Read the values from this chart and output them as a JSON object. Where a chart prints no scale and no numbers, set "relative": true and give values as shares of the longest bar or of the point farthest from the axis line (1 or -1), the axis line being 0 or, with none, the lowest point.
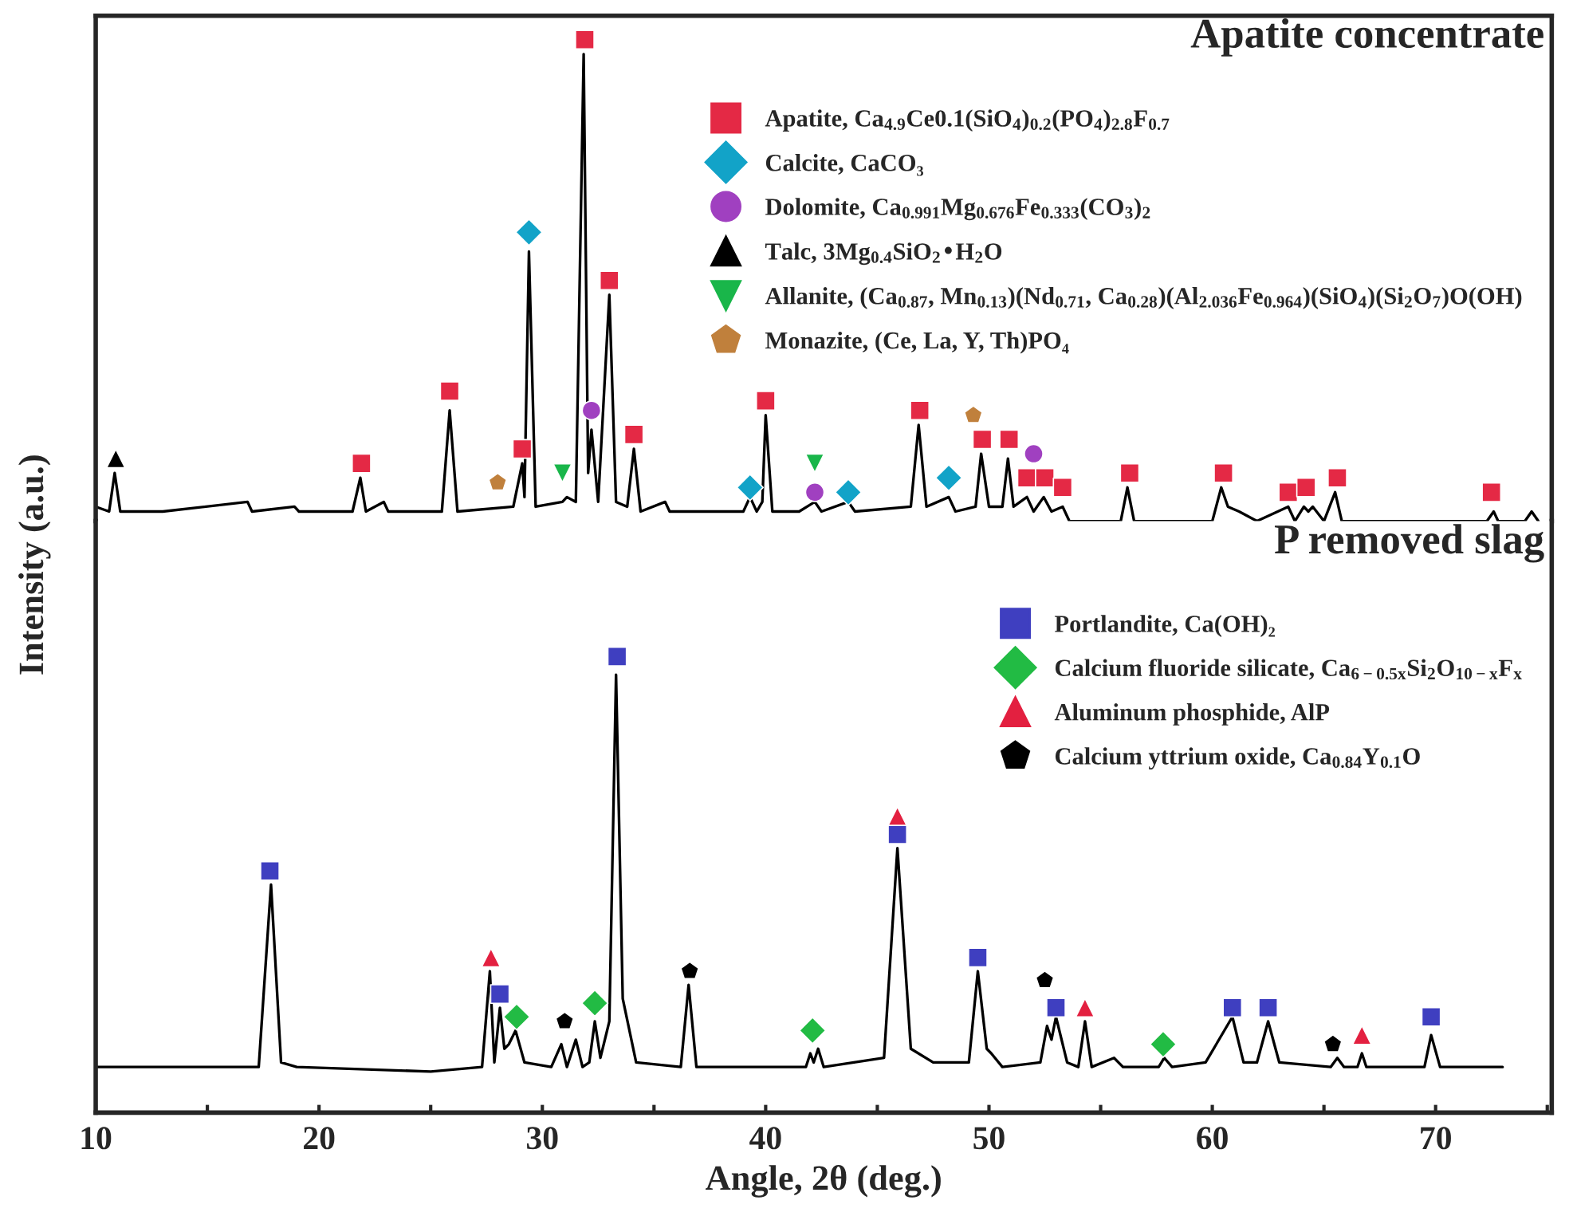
{
  "chart_data": [
    {
      "type": "line",
      "title": "Apatite concentrate",
      "ylabel": "Intensity (a.u.)",
      "relative": true,
      "xlim": [
        10,
        75.2
      ],
      "tick_labels": false,
      "legend": "top right",
      "series": [
        {
          "type": "line",
          "color": "#000000",
          "x": [
            10,
            10.6,
            10.85,
            11.1,
            13,
            16.8,
            17,
            18.9,
            19.1,
            21.5,
            21.85,
            22.1,
            22.9,
            23.1,
            25.5,
            25.85,
            26.2,
            28.7,
            29.1,
            29.2,
            29.4,
            29.7,
            30.9,
            31.1,
            31.5,
            31.85,
            32.05,
            32.2,
            32.5,
            33.0,
            33.3,
            33.8,
            34.1,
            34.4,
            35.5,
            35.7,
            39.0,
            39.3,
            39.6,
            39.85,
            40.0,
            40.3,
            41.5,
            42.2,
            42.5,
            43.7,
            44,
            46.5,
            46.85,
            47.2,
            48.2,
            48.5,
            49.4,
            49.65,
            50.0,
            50.6,
            50.85,
            51.1,
            51.7,
            52.0,
            52.45,
            52.8,
            53.3,
            53.6,
            55.9,
            56.2,
            56.5,
            60.0,
            60.4,
            60.7,
            61.2,
            62.0,
            63.4,
            63.7,
            64.1,
            64.3,
            64.5,
            65.0,
            65.5,
            65.8,
            72.3,
            72.6,
            72.8,
            74.0,
            74.3,
            74.6
          ],
          "values": [
            0.03,
            0.02,
            0.1,
            0.02,
            0.02,
            0.04,
            0.02,
            0.03,
            0.02,
            0.02,
            0.09,
            0.02,
            0.04,
            0.02,
            0.02,
            0.23,
            0.02,
            0.03,
            0.12,
            0.05,
            0.56,
            0.03,
            0.04,
            0.05,
            0.04,
            0.97,
            0.1,
            0.19,
            0.04,
            0.47,
            0.04,
            0.03,
            0.15,
            0.02,
            0.04,
            0.02,
            0.02,
            0.05,
            0.02,
            0.04,
            0.22,
            0.02,
            0.02,
            0.04,
            0.02,
            0.04,
            0.02,
            0.03,
            0.2,
            0.03,
            0.05,
            0.02,
            0.03,
            0.14,
            0.03,
            0.03,
            0.13,
            0.03,
            0.05,
            0.02,
            0.05,
            0.02,
            0.03,
            0.0,
            0.0,
            0.07,
            0.0,
            0.0,
            0.07,
            0.03,
            0.02,
            0.0,
            0.03,
            0.0,
            0.03,
            0.02,
            0.03,
            0.0,
            0.06,
            0.0,
            0.0,
            0.02,
            0.0,
            0.0,
            0.02,
            0.0
          ]
        },
        {
          "type": "scatter",
          "name": "Apatite, Ca$_{4.9}$Ce0.1(SiO$_{4}$)$_{0.2}$(PO$_{4}$)$_{2.8}$F$_{0.7}$",
          "color": "#e42945",
          "marker": "square",
          "x": [
            21.9,
            25.85,
            29.1,
            31.9,
            33.0,
            34.1,
            40.0,
            46.9,
            49.7,
            50.9,
            51.7,
            52.5,
            53.3,
            56.3,
            60.5,
            63.4,
            64.2,
            65.6,
            72.5
          ],
          "values": [
            0.12,
            0.27,
            0.15,
            1.0,
            0.5,
            0.18,
            0.25,
            0.23,
            0.17,
            0.17,
            0.09,
            0.09,
            0.07,
            0.1,
            0.1,
            0.06,
            0.07,
            0.09,
            0.06
          ]
        },
        {
          "type": "scatter",
          "name": "Calcite, CaCO₃",
          "color": "#12a3c8",
          "marker": "diamond",
          "x": [
            29.4,
            39.3,
            43.7,
            48.2
          ],
          "values": [
            0.6,
            0.07,
            0.06,
            0.09
          ]
        },
        {
          "type": "scatter",
          "name": "Dolomite, Ca$_{0.991}$Mg$_{0.676}$Fe$_{0.333}$(CO$_{3}$)$_{2}$",
          "color": "#a040c0",
          "marker": "circle",
          "x": [
            32.2,
            42.2,
            52.0
          ],
          "values": [
            0.23,
            0.06,
            0.14
          ]
        },
        {
          "type": "scatter",
          "name": "Talc, 3Mg$_{0.4}$SiO$_{2}$•H$_{2}$O",
          "color": "#000000",
          "marker": "triangle",
          "x": [
            10.9
          ],
          "values": [
            0.13
          ]
        },
        {
          "type": "scatter",
          "name": "Allanite, (Ca$_{0.87}$, Mn$_{0.13}$)(Nd$_{0.71}$, Ca$_{0.28}$)(Al$_{2.036}$Fe$_{0.964}$)(SiO$_{4}$)(Si$_{2}$O$_{7}$)O(OH)",
          "color": "#19b64a",
          "marker": "triangle_down",
          "x": [
            30.9,
            42.2
          ],
          "values": [
            0.1,
            0.12
          ]
        },
        {
          "type": "scatter",
          "name": "Monazite, (Ce, La, Y, Th)PO₄",
          "color": "#c0803c",
          "x": [
            28.0,
            49.3
          ],
          "values": [
            0.08,
            0.22
          ]
        }
      ]
    },
    {
      "type": "line",
      "title": "P removed slag",
      "xlabel": "Angle, 2θ (deg.)",
      "relative": true,
      "xlim": [
        10,
        75.2
      ],
      "tick_labels": "x",
      "legend": "top right",
      "xticks": [
        10,
        {
          "value": 15,
          "label": null
        },
        20,
        {
          "value": 25,
          "label": null
        },
        30,
        {
          "value": 35,
          "label": null
        },
        40,
        {
          "value": 45,
          "label": null
        },
        50,
        {
          "value": 55,
          "label": null
        },
        60,
        {
          "value": 65,
          "label": null
        },
        70,
        {
          "value": 75,
          "label": null
        }
      ],
      "series": [
        {
          "type": "line",
          "color": "#000000",
          "x": [
            10.0,
            13,
            17.3,
            17.85,
            18.3,
            19,
            25,
            27.3,
            27.65,
            27.85,
            28.1,
            28.3,
            28.5,
            28.8,
            29.2,
            30.4,
            30.85,
            31.1,
            31.5,
            31.8,
            32.1,
            32.35,
            32.6,
            33.0,
            33.3,
            33.6,
            34.2,
            36.2,
            36.55,
            36.9,
            41.8,
            42.0,
            42.15,
            42.35,
            42.6,
            45.3,
            45.9,
            46.5,
            47.5,
            49.1,
            49.5,
            49.9,
            50.1,
            50.6,
            52.3,
            52.6,
            52.8,
            53.0,
            53.5,
            54.0,
            54.3,
            54.6,
            55.6,
            56.0,
            57.6,
            57.85,
            58.2,
            59.7,
            60.9,
            61.4,
            62.0,
            62.5,
            63.0,
            65.3,
            65.6,
            65.9,
            66.5,
            66.7,
            66.9,
            69.5,
            69.8,
            70.2,
            73.0
          ],
          "values": [
            0.1,
            0.1,
            0.1,
            0.5,
            0.11,
            0.1,
            0.09,
            0.1,
            0.31,
            0.11,
            0.23,
            0.14,
            0.15,
            0.18,
            0.11,
            0.1,
            0.15,
            0.1,
            0.16,
            0.1,
            0.11,
            0.2,
            0.12,
            0.2,
            0.96,
            0.25,
            0.11,
            0.1,
            0.28,
            0.1,
            0.1,
            0.13,
            0.11,
            0.14,
            0.1,
            0.12,
            0.58,
            0.14,
            0.11,
            0.11,
            0.31,
            0.14,
            0.13,
            0.1,
            0.11,
            0.19,
            0.16,
            0.21,
            0.11,
            0.1,
            0.2,
            0.1,
            0.12,
            0.1,
            0.1,
            0.12,
            0.1,
            0.11,
            0.21,
            0.11,
            0.11,
            0.2,
            0.11,
            0.1,
            0.12,
            0.1,
            0.1,
            0.13,
            0.1,
            0.1,
            0.17,
            0.1,
            0.1
          ]
        },
        {
          "type": "scatter",
          "name": "Portlandite, Ca(OH)₂",
          "color": "#3f3fc0",
          "marker": "square",
          "x": [
            17.8,
            28.1,
            33.35,
            45.9,
            49.5,
            53.0,
            60.9,
            62.5,
            69.8
          ],
          "values": [
            0.53,
            0.26,
            1.0,
            0.61,
            0.34,
            0.23,
            0.23,
            0.23,
            0.21
          ]
        },
        {
          "type": "scatter",
          "name": "Calcium fluoride silicate, Ca$_{6−0.5x}$Si$_{2}$O$_{10−x}$F$_{x}$",
          "color": "#22bb44",
          "marker": "diamond",
          "x": [
            28.85,
            32.35,
            42.1,
            57.8
          ],
          "values": [
            0.21,
            0.24,
            0.18,
            0.15
          ]
        },
        {
          "type": "scatter",
          "name": "Aluminum phosphide, AlP",
          "color": "#e32040",
          "marker": "triangle",
          "x": [
            27.7,
            45.9,
            54.3,
            66.7
          ],
          "values": [
            0.34,
            0.65,
            0.23,
            0.17
          ]
        },
        {
          "type": "scatter",
          "name": "Calcium yttrium oxide, Ca$_{0.84}$Y$_{0.1}$O",
          "color": "#000000",
          "x": [
            31.0,
            36.6,
            52.5,
            65.4
          ],
          "values": [
            0.2,
            0.31,
            0.29,
            0.15
          ]
        }
      ]
    }
  ]
}
